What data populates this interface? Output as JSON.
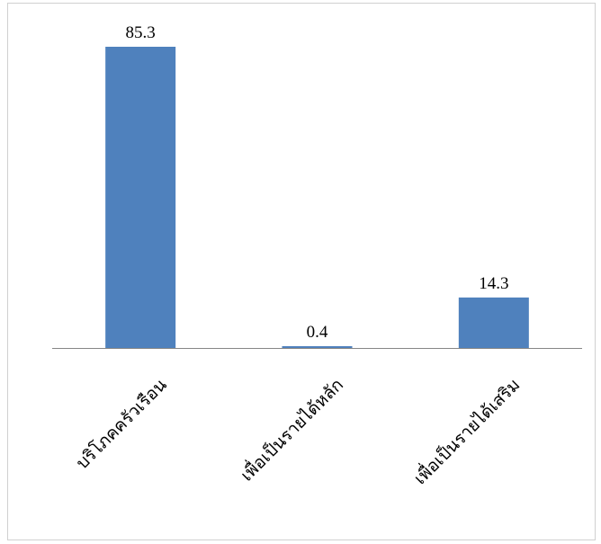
{
  "chart_data": {
    "type": "bar",
    "categories": [
      "บริโภคครัวเรือน",
      "เพื่อเป็นรายได้หลัก",
      "เพื่อเป็นรายได้เสริม"
    ],
    "values": [
      85.3,
      0.4,
      14.3
    ],
    "title": "",
    "xlabel": "",
    "ylabel": "",
    "ylim": [
      0,
      100
    ],
    "grid": false,
    "legend": "none",
    "bar_color": "#4f81bd",
    "axis_color": "#868686",
    "data_labels": [
      "85.3",
      "0.4",
      "14.3"
    ]
  }
}
